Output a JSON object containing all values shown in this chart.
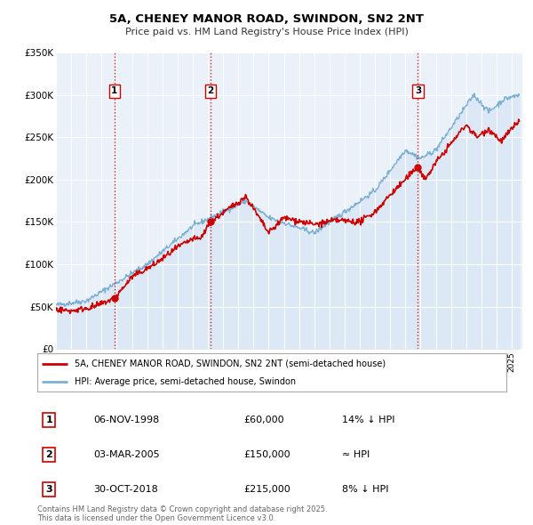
{
  "title": "5A, CHENEY MANOR ROAD, SWINDON, SN2 2NT",
  "subtitle": "Price paid vs. HM Land Registry's House Price Index (HPI)",
  "ylim": [
    0,
    350000
  ],
  "yticks": [
    0,
    50000,
    100000,
    150000,
    200000,
    250000,
    300000,
    350000
  ],
  "ytick_labels": [
    "£0",
    "£50K",
    "£100K",
    "£150K",
    "£200K",
    "£250K",
    "£300K",
    "£350K"
  ],
  "xlim_start": 1995.0,
  "xlim_end": 2025.7,
  "sale_dates": [
    1998.854,
    2005.164,
    2018.829
  ],
  "sale_prices": [
    60000,
    150000,
    215000
  ],
  "sale_labels": [
    "1",
    "2",
    "3"
  ],
  "vline_color": "#cc0000",
  "sale_marker_color": "#cc0000",
  "red_line_color": "#cc0000",
  "blue_fill_color": "#dce8f5",
  "blue_line_color": "#7bafd4",
  "legend_red_label": "5A, CHENEY MANOR ROAD, SWINDON, SN2 2NT (semi-detached house)",
  "legend_blue_label": "HPI: Average price, semi-detached house, Swindon",
  "table_rows": [
    {
      "label": "1",
      "date": "06-NOV-1998",
      "price": "£60,000",
      "relation": "14% ↓ HPI"
    },
    {
      "label": "2",
      "date": "03-MAR-2005",
      "price": "£150,000",
      "relation": "≈ HPI"
    },
    {
      "label": "3",
      "date": "30-OCT-2018",
      "price": "£215,000",
      "relation": "8% ↓ HPI"
    }
  ],
  "footer": "Contains HM Land Registry data © Crown copyright and database right 2025.\nThis data is licensed under the Open Government Licence v3.0.",
  "bg_color": "#ffffff",
  "plot_bg_color": "#eaf1f8",
  "grid_color": "#ffffff"
}
